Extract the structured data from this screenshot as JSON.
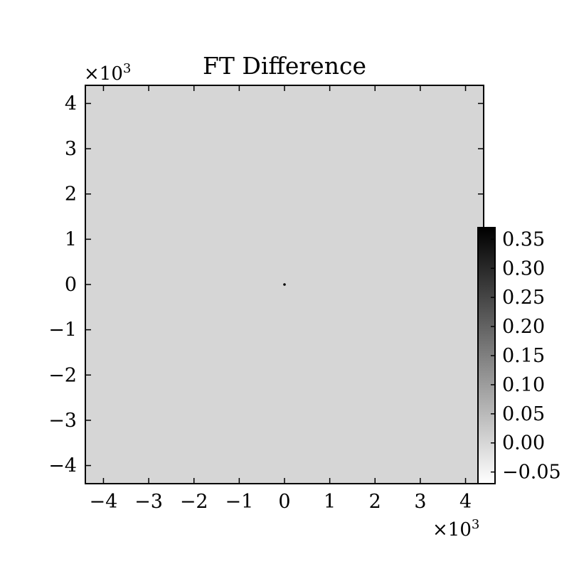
{
  "chart_data": {
    "type": "heatmap",
    "title": "FT Difference",
    "xlabel": "",
    "ylabel": "",
    "xlim": [
      -4.4,
      4.4
    ],
    "ylim": [
      -4.4,
      4.4
    ],
    "x_ticks": [
      -4,
      -3,
      -2,
      -1,
      0,
      1,
      2,
      3,
      4
    ],
    "y_ticks": [
      -4,
      -3,
      -2,
      -1,
      0,
      1,
      2,
      3,
      4
    ],
    "x_tick_labels": [
      "−4",
      "−3",
      "−2",
      "−1",
      "0",
      "1",
      "2",
      "3",
      "4"
    ],
    "y_tick_labels": [
      "−4",
      "−3",
      "−2",
      "−1",
      "0",
      "1",
      "2",
      "3",
      "4"
    ],
    "x_offset_label": "×10",
    "y_offset_label": "×10",
    "offset_exponent": "3",
    "background_value": 0.0,
    "peaks": [
      {
        "x": 0,
        "y": 0,
        "value": 0.37
      }
    ],
    "colorbar": {
      "cmap": "gray_r",
      "range": [
        -0.07,
        0.37
      ],
      "ticks": [
        0.35,
        0.3,
        0.25,
        0.2,
        0.15,
        0.1,
        0.05,
        0.0,
        -0.05
      ],
      "tick_labels": [
        "0.35",
        "0.30",
        "0.25",
        "0.20",
        "0.15",
        "0.10",
        "0.05",
        "0.00",
        "−0.05"
      ]
    },
    "grid": false
  }
}
